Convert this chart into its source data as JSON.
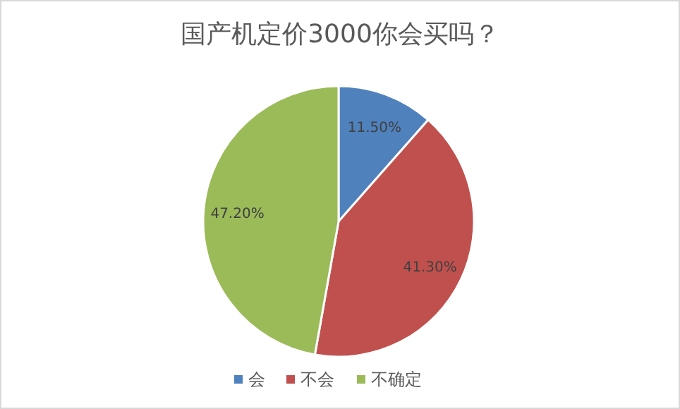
{
  "chart_data": {
    "type": "pie",
    "title": "国产机定价3000你会买吗？",
    "categories": [
      "会",
      "不会",
      "不确定"
    ],
    "values": [
      11.5,
      41.3,
      47.2
    ],
    "colors": [
      "#4f81bd",
      "#c0504d",
      "#9bbb59"
    ],
    "value_labels": [
      "11.50%",
      "41.30%",
      "47.20%"
    ],
    "legend": "bottom"
  }
}
